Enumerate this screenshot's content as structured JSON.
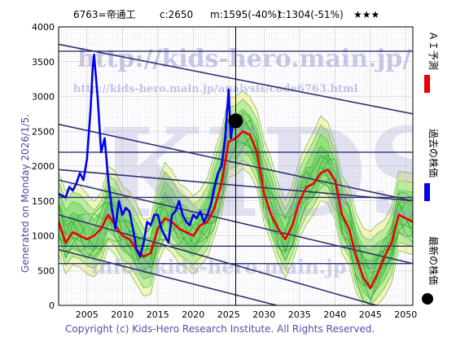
{
  "header": {
    "stock": "6763=帝通工",
    "current": "c:2650",
    "max_info": "m:1595(-40%)",
    "target_info": "t:1304(-51%)",
    "rating": "★★★"
  },
  "generated": "Generated on Monday 2026/1/5.",
  "footer": "Copyright (c) Kids-Hero Research Institute. All Rights Reserved.",
  "watermarks": {
    "url_big": "http://kids-hero.main.jp/",
    "url_small": "http://kids-hero.main.jp/analysis/code6763.html",
    "logo": "KIDS",
    "email": "info@kids-hero.main.jp"
  },
  "legend": [
    {
      "label": "ＡＩ予測",
      "color": "#ee0000"
    },
    {
      "label": "過去の株価",
      "color": "#0000ee"
    },
    {
      "label": "最新の株価",
      "color": "#000000"
    }
  ],
  "chart_data": {
    "type": "line",
    "xlim": [
      2001,
      2051
    ],
    "ylim": [
      0,
      4000
    ],
    "xticks": [
      "2005",
      "2010",
      "2015",
      "2020",
      "2025",
      "2030",
      "2035",
      "2040",
      "2045",
      "2050"
    ],
    "yticks": [
      "0",
      "500",
      "1000",
      "1500",
      "2000",
      "2500",
      "3000",
      "3500",
      "4000"
    ],
    "grid": true,
    "series": [
      {
        "name": "過去の株価",
        "color": "#0000ee",
        "x": [
          2001,
          2002,
          2002.5,
          2003,
          2003.5,
          2004,
          2004.5,
          2005,
          2005.5,
          2005.8,
          2006,
          2006.5,
          2007,
          2007.5,
          2008,
          2008.5,
          2009,
          2009.5,
          2010,
          2010.5,
          2011,
          2011.5,
          2012,
          2012.5,
          2013,
          2013.5,
          2014,
          2014.5,
          2015,
          2015.5,
          2016,
          2016.5,
          2017,
          2017.5,
          2018,
          2018.5,
          2019,
          2019.5,
          2020,
          2020.5,
          2021,
          2021.5,
          2022,
          2022.5,
          2023,
          2023.5,
          2024,
          2024.5,
          2025,
          2025.3,
          2025.6,
          2026
        ],
        "y": [
          1600,
          1550,
          1700,
          1650,
          1750,
          1900,
          1800,
          2100,
          2800,
          3400,
          3600,
          3000,
          2200,
          2400,
          1800,
          1400,
          1100,
          1500,
          1300,
          1400,
          1350,
          1100,
          800,
          700,
          900,
          1200,
          1150,
          1300,
          1300,
          1100,
          1000,
          900,
          1300,
          1350,
          1500,
          1300,
          1200,
          1150,
          1300,
          1250,
          1350,
          1200,
          1300,
          1450,
          1700,
          1900,
          2000,
          2400,
          3100,
          2400,
          2600,
          2650
        ]
      },
      {
        "name": "ＡＩ予測",
        "color": "#ee0000",
        "x": [
          2001,
          2002,
          2003,
          2004,
          2005,
          2006,
          2007,
          2008,
          2009,
          2010,
          2011,
          2012,
          2013,
          2014,
          2015,
          2016,
          2017,
          2018,
          2019,
          2020,
          2021,
          2022,
          2023,
          2024,
          2025,
          2026,
          2027,
          2028,
          2029,
          2030,
          2031,
          2032,
          2033,
          2034,
          2035,
          2036,
          2037,
          2038,
          2039,
          2040,
          2041,
          2042,
          2043,
          2044,
          2045,
          2046,
          2047,
          2048,
          2049,
          2050,
          2051
        ],
        "y": [
          1200,
          900,
          1050,
          1000,
          950,
          1000,
          1100,
          1300,
          1150,
          1000,
          950,
          800,
          700,
          750,
          1100,
          1250,
          1200,
          1100,
          1050,
          1000,
          1150,
          1200,
          1400,
          1750,
          2350,
          2400,
          2500,
          2450,
          2200,
          1600,
          1300,
          1100,
          950,
          1150,
          1500,
          1700,
          1750,
          1900,
          1950,
          1800,
          1300,
          1100,
          700,
          400,
          250,
          450,
          700,
          900,
          1300,
          1250,
          1200
        ]
      }
    ],
    "latest_point": {
      "x": 2026,
      "y": 2650
    }
  }
}
